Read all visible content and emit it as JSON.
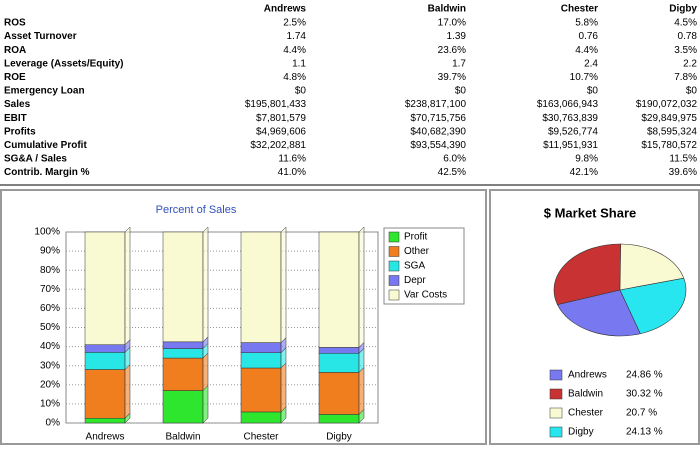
{
  "table": {
    "columns": [
      "Andrews",
      "Baldwin",
      "Chester",
      "Digby"
    ],
    "rows": [
      [
        "ROS",
        "2.5%",
        "17.0%",
        "5.8%",
        "4.5%"
      ],
      [
        "Asset Turnover",
        "1.74",
        "1.39",
        "0.76",
        "0.78"
      ],
      [
        "ROA",
        "4.4%",
        "23.6%",
        "4.4%",
        "3.5%"
      ],
      [
        "Leverage (Assets/Equity)",
        "1.1",
        "1.7",
        "2.4",
        "2.2"
      ],
      [
        "ROE",
        "4.8%",
        "39.7%",
        "10.7%",
        "7.8%"
      ],
      [
        "Emergency Loan",
        "$0",
        "$0",
        "$0",
        "$0"
      ],
      [
        "Sales",
        "$195,801,433",
        "$238,817,100",
        "$163,066,943",
        "$190,072,032"
      ],
      [
        "EBIT",
        "$7,801,579",
        "$70,715,756",
        "$30,763,839",
        "$29,849,975"
      ],
      [
        "Profits",
        "$4,969,606",
        "$40,682,390",
        "$9,526,774",
        "$8,595,324"
      ],
      [
        "Cumulative Profit",
        "$32,202,881",
        "$93,554,390",
        "$11,951,931",
        "$15,780,572"
      ],
      [
        "SG&A / Sales",
        "11.6%",
        "6.0%",
        "9.8%",
        "11.5%"
      ],
      [
        "Contrib. Margin %",
        "41.0%",
        "42.5%",
        "42.1%",
        "39.6%"
      ]
    ]
  },
  "chart_data": [
    {
      "type": "bar",
      "stacked": true,
      "title": "Percent of Sales",
      "categories": [
        "Andrews",
        "Baldwin",
        "Chester",
        "Digby"
      ],
      "series": [
        {
          "name": "Profit",
          "color": "#2ee62e",
          "values": [
            2.5,
            17,
            5.8,
            4.5
          ]
        },
        {
          "name": "Other",
          "color": "#f07d1e",
          "values": [
            25.5,
            17,
            23,
            22
          ]
        },
        {
          "name": "SGA",
          "color": "#28e6e6",
          "values": [
            9,
            5,
            8,
            10
          ]
        },
        {
          "name": "Depr",
          "color": "#7878f0",
          "values": [
            4,
            3.5,
            5.3,
            3.1
          ]
        },
        {
          "name": "Var Costs",
          "color": "#fafad2",
          "values": [
            59,
            57.5,
            57.9,
            60.4
          ]
        }
      ],
      "ylim": [
        0,
        100
      ],
      "yticks": [
        {
          "value": 0,
          "label": "0%"
        },
        {
          "value": 10,
          "label": "10%"
        },
        {
          "value": 20,
          "label": "20%"
        },
        {
          "value": 30,
          "label": "30%"
        },
        {
          "value": 40,
          "label": "40%"
        },
        {
          "value": 50,
          "label": "50%"
        },
        {
          "value": 60,
          "label": "60%"
        },
        {
          "value": 70,
          "label": "70%"
        },
        {
          "value": 80,
          "label": "80%"
        },
        {
          "value": 90,
          "label": "90%"
        },
        {
          "value": 100,
          "label": "100%"
        }
      ],
      "grid": true
    },
    {
      "type": "pie",
      "title": "$ Market Share",
      "categories": [
        "Andrews",
        "Baldwin",
        "Chester",
        "Digby"
      ],
      "values": [
        24.86,
        30.32,
        20.7,
        24.13
      ],
      "value_labels": [
        "24.86 %",
        "30.32 %",
        "20.7 %",
        "24.13 %"
      ],
      "colors": [
        "#7878f0",
        "#c83232",
        "#fafad2",
        "#28e6f0"
      ]
    }
  ]
}
